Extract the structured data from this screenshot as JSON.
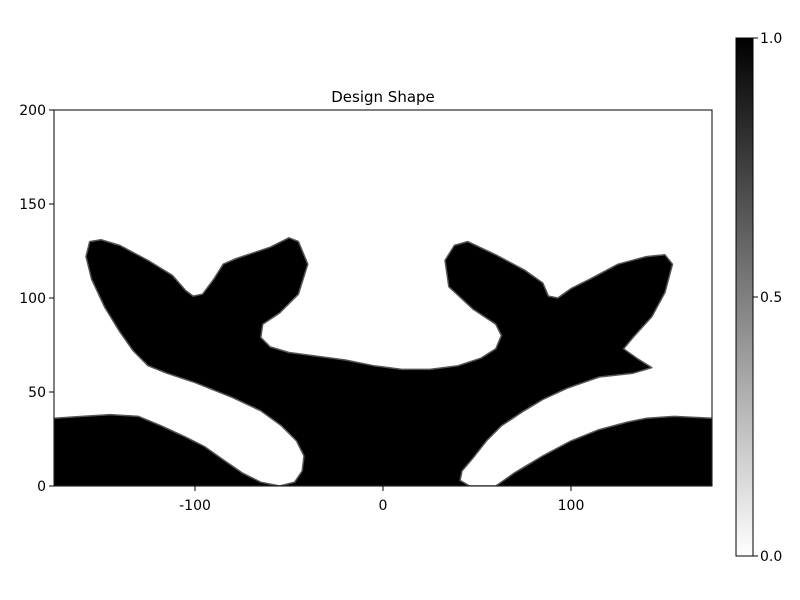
{
  "chart_data": {
    "type": "heatmap",
    "title": "Design Shape",
    "xlabel": "",
    "ylabel": "",
    "xlim": [
      -175,
      175
    ],
    "ylim": [
      0,
      200
    ],
    "xticks": [
      -100,
      0,
      100
    ],
    "xtick_labels": [
      "-100",
      "0",
      "100"
    ],
    "yticks": [
      0,
      50,
      100,
      150,
      200
    ],
    "ytick_labels": [
      "0",
      "50",
      "100",
      "150",
      "200"
    ],
    "grid": false,
    "colormap": {
      "min_color": "#ffffff",
      "max_color": "#000000"
    },
    "colorbar": {
      "range": [
        0.0,
        1.0
      ],
      "ticks": [
        0.0,
        0.5,
        1.0
      ],
      "tick_labels": [
        "0.0",
        "0.5",
        "1.0"
      ],
      "placement": "right"
    },
    "shape": {
      "value": 1.0,
      "background_value": 0.0,
      "outline": [
        [
          -175,
          0
        ],
        [
          -175,
          36
        ],
        [
          -160,
          37
        ],
        [
          -145,
          38
        ],
        [
          -130,
          37
        ],
        [
          -118,
          32
        ],
        [
          -105,
          26
        ],
        [
          -95,
          21
        ],
        [
          -85,
          14
        ],
        [
          -75,
          7
        ],
        [
          -65,
          2
        ],
        [
          -55,
          0
        ],
        [
          -47,
          2
        ],
        [
          -43,
          8
        ],
        [
          -42,
          16
        ],
        [
          -46,
          24
        ],
        [
          -54,
          32
        ],
        [
          -65,
          40
        ],
        [
          -80,
          47
        ],
        [
          -100,
          55
        ],
        [
          -115,
          60
        ],
        [
          -125,
          64
        ],
        [
          -133,
          72
        ],
        [
          -140,
          82
        ],
        [
          -148,
          95
        ],
        [
          -155,
          110
        ],
        [
          -158,
          122
        ],
        [
          -156,
          130
        ],
        [
          -150,
          131
        ],
        [
          -140,
          128
        ],
        [
          -125,
          120
        ],
        [
          -112,
          112
        ],
        [
          -105,
          104
        ],
        [
          -101,
          101
        ],
        [
          -96,
          102
        ],
        [
          -90,
          110
        ],
        [
          -85,
          118
        ],
        [
          -78,
          121
        ],
        [
          -60,
          127
        ],
        [
          -50,
          132
        ],
        [
          -45,
          130
        ],
        [
          -40,
          118
        ],
        [
          -45,
          102
        ],
        [
          -55,
          92
        ],
        [
          -64,
          86
        ],
        [
          -65,
          79
        ],
        [
          -60,
          74
        ],
        [
          -50,
          71
        ],
        [
          -35,
          69
        ],
        [
          -20,
          67
        ],
        [
          -5,
          64
        ],
        [
          10,
          62
        ],
        [
          25,
          62
        ],
        [
          40,
          64
        ],
        [
          52,
          68
        ],
        [
          60,
          73
        ],
        [
          63,
          80
        ],
        [
          60,
          86
        ],
        [
          48,
          94
        ],
        [
          35,
          106
        ],
        [
          33,
          120
        ],
        [
          38,
          128
        ],
        [
          45,
          130
        ],
        [
          60,
          123
        ],
        [
          75,
          115
        ],
        [
          85,
          108
        ],
        [
          88,
          101
        ],
        [
          93,
          100
        ],
        [
          100,
          105
        ],
        [
          110,
          110
        ],
        [
          125,
          118
        ],
        [
          140,
          122
        ],
        [
          150,
          123
        ],
        [
          154,
          118
        ],
        [
          150,
          103
        ],
        [
          143,
          90
        ],
        [
          133,
          79
        ],
        [
          128,
          73
        ],
        [
          135,
          68
        ],
        [
          143,
          63
        ],
        [
          133,
          60
        ],
        [
          115,
          58
        ],
        [
          98,
          52
        ],
        [
          85,
          46
        ],
        [
          75,
          40
        ],
        [
          63,
          32
        ],
        [
          55,
          24
        ],
        [
          48,
          15
        ],
        [
          42,
          8
        ],
        [
          41,
          3
        ],
        [
          46,
          0
        ],
        [
          60,
          0
        ],
        [
          70,
          7
        ],
        [
          85,
          16
        ],
        [
          100,
          24
        ],
        [
          115,
          30
        ],
        [
          130,
          34
        ],
        [
          140,
          36
        ],
        [
          155,
          37
        ],
        [
          175,
          36
        ],
        [
          175,
          0
        ]
      ]
    }
  }
}
